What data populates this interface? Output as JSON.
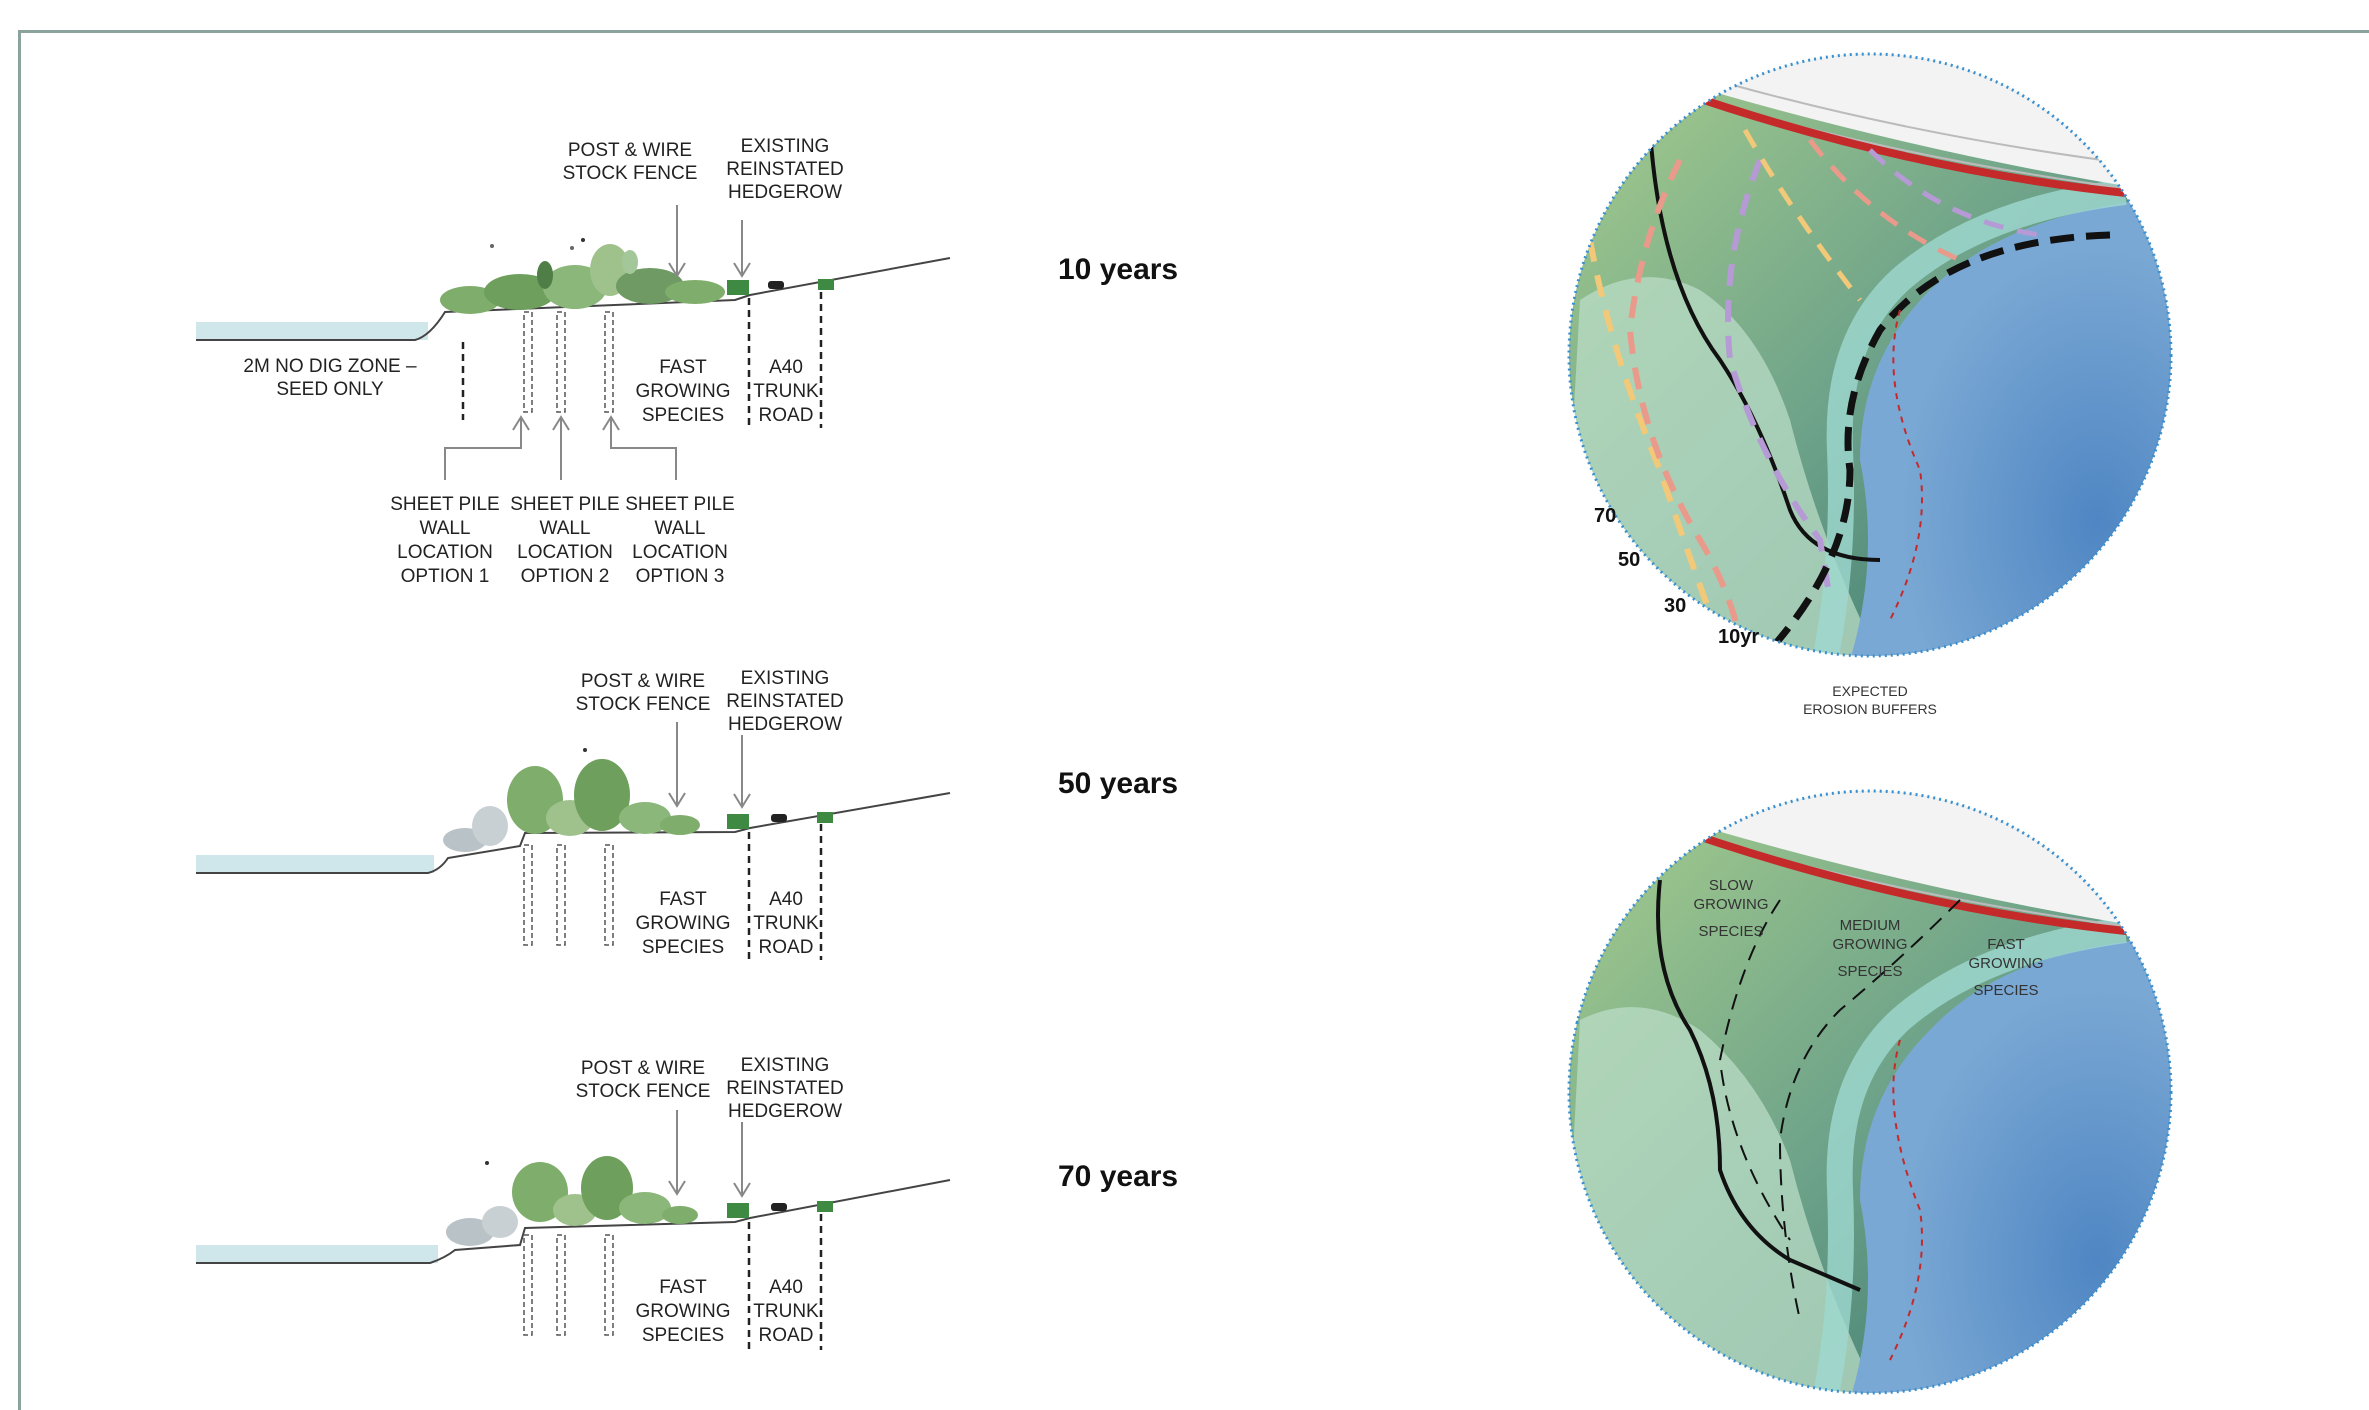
{
  "sections": [
    {
      "period": "10 years",
      "fence_label": [
        "POST & WIRE",
        "STOCK FENCE"
      ],
      "hedgerow_label": [
        "EXISTING",
        "REINSTATED",
        "HEDGEROW"
      ],
      "species_label": [
        "FAST",
        "GROWING",
        "SPECIES"
      ],
      "road_label": [
        "A40",
        "TRUNK",
        "ROAD"
      ],
      "no_dig_label": [
        "2M NO DIG ZONE –",
        "SEED ONLY"
      ],
      "pile_options": [
        [
          "SHEET PILE",
          "WALL",
          "LOCATION",
          "OPTION 1"
        ],
        [
          "SHEET PILE",
          "WALL",
          "LOCATION",
          "OPTION 2"
        ],
        [
          "SHEET PILE",
          "WALL",
          "LOCATION",
          "OPTION 3"
        ]
      ]
    },
    {
      "period": "50 years",
      "fence_label": [
        "POST & WIRE",
        "STOCK FENCE"
      ],
      "hedgerow_label": [
        "EXISTING",
        "REINSTATED",
        "HEDGEROW"
      ],
      "species_label": [
        "FAST",
        "GROWING",
        "SPECIES"
      ],
      "road_label": [
        "A40",
        "TRUNK",
        "ROAD"
      ]
    },
    {
      "period": "70 years",
      "fence_label": [
        "POST & WIRE",
        "STOCK FENCE"
      ],
      "hedgerow_label": [
        "EXISTING",
        "REINSTATED",
        "HEDGEROW"
      ],
      "species_label": [
        "FAST",
        "GROWING",
        "SPECIES"
      ],
      "road_label": [
        "A40",
        "TRUNK",
        "ROAD"
      ]
    }
  ],
  "plan_top": {
    "buffer_labels": [
      "70",
      "50",
      "30",
      "10yr"
    ],
    "caption": [
      "EXPECTED",
      "EROSION BUFFERS"
    ]
  },
  "plan_bottom": {
    "zone_labels": [
      [
        "SLOW",
        "GROWING",
        "SPECIES"
      ],
      [
        "MEDIUM",
        "GROWING",
        "SPECIES"
      ],
      [
        "FAST",
        "GROWING",
        "SPECIES"
      ]
    ]
  },
  "colors": {
    "water": "#cfe6ea",
    "road_edge": "#c42a2a",
    "buffer_70": "#f2c879",
    "buffer_50": "#e99a8a",
    "buffer_30": "#b69ad6",
    "buffer_10": "#111111",
    "frame": "#8aa39d"
  }
}
